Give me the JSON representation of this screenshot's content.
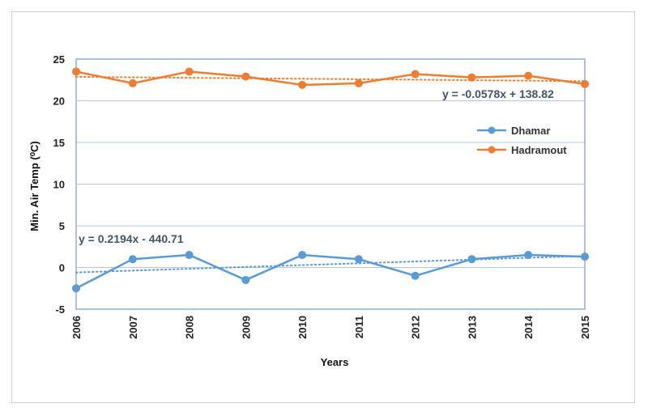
{
  "chart_data": {
    "type": "line",
    "title": "",
    "xlabel": "Years",
    "ylabel": "Min. Air Temp (⁰C)",
    "x": [
      "2006",
      "2007",
      "2008",
      "2009",
      "2010",
      "2011",
      "2012",
      "2013",
      "2014",
      "2015"
    ],
    "ylim": [
      -5,
      25
    ],
    "yticks": [
      -5,
      0,
      5,
      10,
      15,
      20,
      25
    ],
    "grid": true,
    "legend_position": "right",
    "series": [
      {
        "name": "Dhamar",
        "color": "#5b9bd5",
        "values": [
          -2.5,
          1.0,
          1.5,
          -1.5,
          1.5,
          1.0,
          -1.0,
          1.0,
          1.5,
          1.3
        ],
        "trendline": {
          "slope": 0.2194,
          "intercept": -440.71,
          "equation": "y = 0.2194x - 440.71"
        }
      },
      {
        "name": "Hadramout",
        "color": "#ed7d31",
        "values": [
          23.5,
          22.1,
          23.5,
          22.9,
          21.9,
          22.1,
          23.2,
          22.8,
          23.0,
          22.0
        ],
        "trendline": {
          "slope": -0.0578,
          "intercept": 138.82,
          "equation": "y = -0.0578x + 138.82"
        }
      }
    ]
  }
}
